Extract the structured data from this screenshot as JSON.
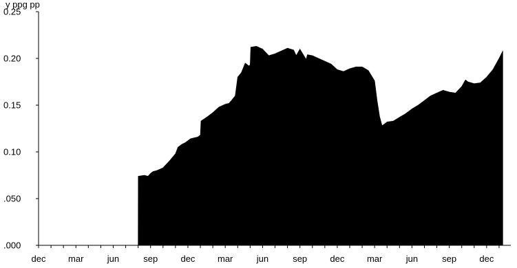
{
  "chart_data": {
    "type": "area",
    "title": "",
    "xlabel": "",
    "ylabel": "",
    "ylim": [
      0,
      0.25
    ],
    "grid": false,
    "legend": "none",
    "fill_color": "#000000",
    "header_text": "y                  ppg        pp",
    "y_ticks": [
      {
        "value": 0,
        "label": ".000"
      },
      {
        "value": 0.05,
        "label": ".050"
      },
      {
        "value": 0.1,
        "label": "0.10"
      },
      {
        "value": 0.15,
        "label": "0.15"
      },
      {
        "value": 0.2,
        "label": "0.20"
      },
      {
        "value": 0.25,
        "label": "0.25"
      }
    ],
    "x_ticks": [
      {
        "month_index": 0,
        "label": "dec"
      },
      {
        "month_index": 3,
        "label": "mar"
      },
      {
        "month_index": 6,
        "label": "jun"
      },
      {
        "month_index": 9,
        "label": "sep"
      },
      {
        "month_index": 12,
        "label": "dec"
      },
      {
        "month_index": 15,
        "label": "mar"
      },
      {
        "month_index": 18,
        "label": "jun"
      },
      {
        "month_index": 21,
        "label": "sep"
      },
      {
        "month_index": 24,
        "label": "dec"
      },
      {
        "month_index": 27,
        "label": "mar"
      },
      {
        "month_index": 30,
        "label": "jun"
      },
      {
        "month_index": 33,
        "label": "sep"
      },
      {
        "month_index": 36,
        "label": "dec"
      }
    ],
    "x_range_months": [
      0,
      37.3
    ],
    "series": [
      {
        "x": [
          0,
          8.0,
          8.01,
          8.5,
          8.8,
          9.0,
          9.2,
          9.5,
          10.0,
          10.5,
          11.0,
          11.2,
          11.5,
          11.8,
          12.0,
          12.2,
          12.5,
          12.8,
          13.0,
          13.05,
          13.5,
          14.0,
          14.5,
          15.0,
          15.3,
          15.5,
          15.8,
          16.0,
          16.3,
          16.6,
          16.9,
          17.0,
          17.05,
          17.5,
          18.0,
          18.5,
          19.0,
          19.5,
          20.0,
          20.5,
          20.7,
          21.0,
          21.5,
          21.6,
          22.0,
          22.5,
          23.0,
          23.5,
          24.0,
          24.5,
          25.0,
          25.5,
          26.0,
          26.5,
          27.0,
          27.2,
          27.4,
          27.6,
          27.8,
          28.0,
          28.5,
          29.0,
          29.5,
          30.0,
          30.5,
          31.0,
          31.5,
          32.0,
          32.5,
          33.0,
          33.5,
          34.0,
          34.3,
          34.5,
          35.0,
          35.5,
          36.0,
          36.5,
          37.0,
          37.3
        ],
        "y": [
          0,
          0,
          0.074,
          0.075,
          0.074,
          0.077,
          0.079,
          0.08,
          0.083,
          0.09,
          0.098,
          0.105,
          0.108,
          0.11,
          0.112,
          0.114,
          0.115,
          0.116,
          0.118,
          0.133,
          0.137,
          0.142,
          0.148,
          0.151,
          0.152,
          0.155,
          0.16,
          0.18,
          0.185,
          0.195,
          0.192,
          0.193,
          0.212,
          0.213,
          0.21,
          0.203,
          0.205,
          0.208,
          0.211,
          0.209,
          0.203,
          0.21,
          0.199,
          0.204,
          0.203,
          0.2,
          0.197,
          0.194,
          0.188,
          0.186,
          0.189,
          0.191,
          0.191,
          0.187,
          0.176,
          0.155,
          0.138,
          0.128,
          0.13,
          0.132,
          0.133,
          0.137,
          0.141,
          0.146,
          0.15,
          0.155,
          0.16,
          0.163,
          0.166,
          0.164,
          0.163,
          0.17,
          0.177,
          0.175,
          0.173,
          0.174,
          0.18,
          0.188,
          0.2,
          0.208
        ]
      }
    ]
  }
}
